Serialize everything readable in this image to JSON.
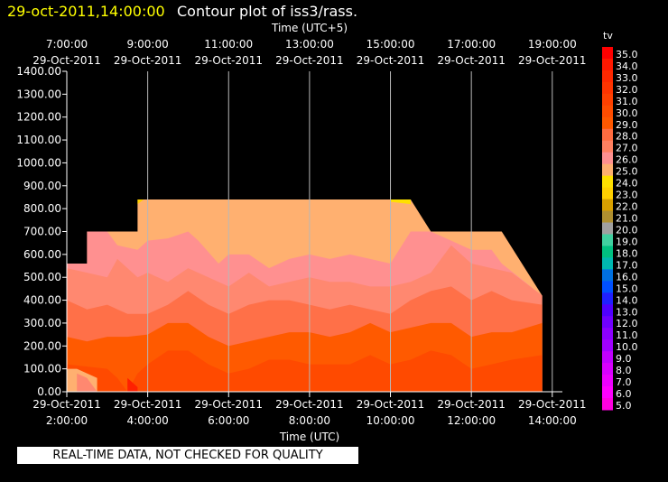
{
  "header": {
    "timestamp": "29-oct-2011,14:00:00",
    "title": "Contour plot of iss3/rass."
  },
  "quality_note": "REAL-TIME DATA, NOT CHECKED FOR QUALITY",
  "colors": {
    "background": "#000000",
    "timestamp": "#ffff00",
    "contour_levels": {
      "20": "#b0b0b0",
      "21": "#c8a030",
      "22": "#e0b000",
      "23": "#ffd000",
      "24": "#ffe000",
      "25": "#ffb070",
      "26": "#ff9090",
      "27": "#ff8870",
      "28": "#ff7048",
      "29": "#ff5a00",
      "30": "#ff4a00",
      "31": "#ff3800",
      "32": "#ff2000"
    }
  },
  "chart_data": {
    "type": "contour",
    "title": "Contour plot of iss3/rass.",
    "xlabel": "Time (UTC)",
    "x2label": "Time (UTC+5)",
    "ylabel": "",
    "xlim": [
      2.0,
      14.25
    ],
    "ylim": [
      0,
      1400
    ],
    "x_ticks": [
      {
        "hour": 2,
        "date": "29-Oct-2011",
        "time": "2:00:00"
      },
      {
        "hour": 4,
        "date": "29-Oct-2011",
        "time": "4:00:00"
      },
      {
        "hour": 6,
        "date": "29-Oct-2011",
        "time": "6:00:00"
      },
      {
        "hour": 8,
        "date": "29-Oct-2011",
        "time": "8:00:00"
      },
      {
        "hour": 10,
        "date": "29-Oct-2011",
        "time": "10:00:00"
      },
      {
        "hour": 12,
        "date": "29-Oct-2011",
        "time": "12:00:00"
      },
      {
        "hour": 14,
        "date": "29-Oct-2011",
        "time": "14:00:00"
      }
    ],
    "x2_ticks": [
      {
        "hour": 2,
        "date": "29-Oct-2011",
        "time": "7:00:00"
      },
      {
        "hour": 4,
        "date": "29-Oct-2011",
        "time": "9:00:00"
      },
      {
        "hour": 6,
        "date": "29-Oct-2011",
        "time": "11:00:00"
      },
      {
        "hour": 8,
        "date": "29-Oct-2011",
        "time": "13:00:00"
      },
      {
        "hour": 10,
        "date": "29-Oct-2011",
        "time": "15:00:00"
      },
      {
        "hour": 12,
        "date": "29-Oct-2011",
        "time": "17:00:00"
      },
      {
        "hour": 14,
        "date": "29-Oct-2011",
        "time": "19:00:00"
      }
    ],
    "y_ticks": [
      "0.00",
      "100.00",
      "200.00",
      "300.00",
      "400.00",
      "500.00",
      "600.00",
      "700.00",
      "800.00",
      "900.00",
      "1000.00",
      "1100.00",
      "1200.00",
      "1300.00",
      "1400.00"
    ],
    "grid": true,
    "colorbar": {
      "label": "tv",
      "levels": [
        "35.0",
        "34.0",
        "33.0",
        "32.0",
        "31.0",
        "30.0",
        "29.0",
        "28.0",
        "27.0",
        "26.0",
        "25.0",
        "24.0",
        "23.0",
        "22.0",
        "21.0",
        "20.0",
        "19.0",
        "18.0",
        "17.0",
        "16.0",
        "15.0",
        "14.0",
        "13.0",
        "12.0",
        "11.0",
        "10.0",
        "9.0",
        "8.0",
        "7.0",
        "6.0",
        "5.0"
      ],
      "colors": [
        "#ff0000",
        "#ff1800",
        "#ff2800",
        "#ff3400",
        "#ff4000",
        "#ff4c00",
        "#ff5800",
        "#ff6c40",
        "#ff8060",
        "#ff9090",
        "#ffb070",
        "#ffe000",
        "#ffd000",
        "#d8a000",
        "#b09030",
        "#a0a0a0",
        "#40d0a0",
        "#00c080",
        "#00b8b0",
        "#0070e0",
        "#0050ff",
        "#2020ff",
        "#5000ff",
        "#7000ff",
        "#8c00ff",
        "#a000ff",
        "#c000ff",
        "#d800ff",
        "#ec00ff",
        "#ff00ff",
        "#ff00e0"
      ]
    },
    "coverage_top_boundary": [
      {
        "x": 2.0,
        "y": 560
      },
      {
        "x": 2.5,
        "y": 560
      },
      {
        "x": 2.5,
        "y": 700
      },
      {
        "x": 3.75,
        "y": 700
      },
      {
        "x": 3.75,
        "y": 840
      },
      {
        "x": 10.5,
        "y": 840
      },
      {
        "x": 11.0,
        "y": 700
      },
      {
        "x": 12.75,
        "y": 700
      },
      {
        "x": 13.75,
        "y": 420
      },
      {
        "x": 13.75,
        "y": 0
      }
    ],
    "bands": [
      {
        "level": 25,
        "top": [
          [
            2.0,
            560
          ],
          [
            2.5,
            560
          ],
          [
            2.5,
            700
          ],
          [
            3.75,
            700
          ],
          [
            3.75,
            840
          ],
          [
            10.5,
            840
          ],
          [
            11.0,
            700
          ],
          [
            12.75,
            700
          ],
          [
            13.75,
            420
          ]
        ]
      },
      {
        "level": 26,
        "top": [
          [
            2.0,
            560
          ],
          [
            2.5,
            560
          ],
          [
            2.5,
            700
          ],
          [
            3.0,
            700
          ],
          [
            3.25,
            640
          ],
          [
            3.75,
            620
          ],
          [
            4.0,
            660
          ],
          [
            4.5,
            670
          ],
          [
            5.0,
            700
          ],
          [
            5.25,
            660
          ],
          [
            5.75,
            560
          ],
          [
            6.0,
            600
          ],
          [
            6.5,
            600
          ],
          [
            7.0,
            540
          ],
          [
            7.5,
            580
          ],
          [
            8.0,
            600
          ],
          [
            8.5,
            580
          ],
          [
            9.0,
            600
          ],
          [
            9.5,
            580
          ],
          [
            10.0,
            560
          ],
          [
            10.5,
            700
          ],
          [
            11.0,
            700
          ],
          [
            11.5,
            660
          ],
          [
            12.0,
            620
          ],
          [
            12.5,
            620
          ],
          [
            12.75,
            560
          ],
          [
            13.75,
            420
          ]
        ]
      },
      {
        "level": 27,
        "top": [
          [
            2.0,
            540
          ],
          [
            2.5,
            520
          ],
          [
            3.0,
            500
          ],
          [
            3.25,
            580
          ],
          [
            3.75,
            500
          ],
          [
            4.0,
            520
          ],
          [
            4.5,
            480
          ],
          [
            5.0,
            540
          ],
          [
            5.5,
            500
          ],
          [
            6.0,
            460
          ],
          [
            6.5,
            520
          ],
          [
            7.0,
            460
          ],
          [
            7.5,
            480
          ],
          [
            8.0,
            500
          ],
          [
            8.5,
            480
          ],
          [
            9.0,
            480
          ],
          [
            9.5,
            460
          ],
          [
            10.0,
            460
          ],
          [
            10.5,
            480
          ],
          [
            11.0,
            520
          ],
          [
            11.5,
            640
          ],
          [
            12.0,
            560
          ],
          [
            12.5,
            540
          ],
          [
            13.0,
            520
          ],
          [
            13.75,
            420
          ]
        ]
      },
      {
        "level": 28,
        "top": [
          [
            2.0,
            400
          ],
          [
            2.5,
            360
          ],
          [
            3.0,
            380
          ],
          [
            3.5,
            340
          ],
          [
            4.0,
            340
          ],
          [
            4.5,
            380
          ],
          [
            5.0,
            440
          ],
          [
            5.5,
            380
          ],
          [
            6.0,
            340
          ],
          [
            6.5,
            380
          ],
          [
            7.0,
            400
          ],
          [
            7.5,
            400
          ],
          [
            8.0,
            380
          ],
          [
            8.5,
            360
          ],
          [
            9.0,
            380
          ],
          [
            9.5,
            360
          ],
          [
            10.0,
            340
          ],
          [
            10.5,
            400
          ],
          [
            11.0,
            440
          ],
          [
            11.5,
            460
          ],
          [
            12.0,
            400
          ],
          [
            12.5,
            440
          ],
          [
            13.0,
            400
          ],
          [
            13.75,
            380
          ]
        ]
      },
      {
        "level": 29,
        "top": [
          [
            2.0,
            240
          ],
          [
            2.5,
            220
          ],
          [
            3.0,
            240
          ],
          [
            3.5,
            240
          ],
          [
            4.0,
            250
          ],
          [
            4.5,
            300
          ],
          [
            5.0,
            300
          ],
          [
            5.5,
            240
          ],
          [
            6.0,
            200
          ],
          [
            6.5,
            220
          ],
          [
            7.0,
            240
          ],
          [
            7.5,
            260
          ],
          [
            8.0,
            260
          ],
          [
            8.5,
            240
          ],
          [
            9.0,
            260
          ],
          [
            9.5,
            300
          ],
          [
            10.0,
            260
          ],
          [
            10.5,
            280
          ],
          [
            11.0,
            300
          ],
          [
            11.5,
            300
          ],
          [
            12.0,
            240
          ],
          [
            12.5,
            260
          ],
          [
            13.0,
            260
          ],
          [
            13.75,
            300
          ]
        ]
      },
      {
        "level": 30,
        "top": [
          [
            2.0,
            120
          ],
          [
            2.5,
            110
          ],
          [
            3.0,
            100
          ],
          [
            3.25,
            60
          ],
          [
            3.5,
            0
          ],
          [
            3.75,
            80
          ],
          [
            4.0,
            120
          ],
          [
            4.5,
            180
          ],
          [
            5.0,
            180
          ],
          [
            5.5,
            120
          ],
          [
            6.0,
            80
          ],
          [
            6.5,
            100
          ],
          [
            7.0,
            140
          ],
          [
            7.5,
            140
          ],
          [
            8.0,
            120
          ],
          [
            8.5,
            120
          ],
          [
            9.0,
            120
          ],
          [
            9.5,
            160
          ],
          [
            10.0,
            120
          ],
          [
            10.5,
            140
          ],
          [
            11.0,
            180
          ],
          [
            11.5,
            160
          ],
          [
            12.0,
            100
          ],
          [
            12.5,
            120
          ],
          [
            13.0,
            140
          ],
          [
            13.75,
            160
          ]
        ]
      },
      {
        "level": 25,
        "top": [
          [
            2.0,
            100
          ],
          [
            2.25,
            100
          ],
          [
            2.75,
            60
          ],
          [
            2.75,
            0
          ],
          [
            2.0,
            0
          ]
        ]
      },
      {
        "level": 27,
        "top": [
          [
            2.25,
            80
          ],
          [
            2.5,
            60
          ],
          [
            2.75,
            0
          ],
          [
            2.25,
            0
          ]
        ]
      },
      {
        "level": 32,
        "top": [
          [
            3.5,
            60
          ],
          [
            3.75,
            20
          ],
          [
            3.75,
            0
          ],
          [
            3.5,
            0
          ]
        ]
      },
      {
        "level": 24,
        "top": [
          [
            10.0,
            840
          ],
          [
            10.5,
            840
          ],
          [
            10.5,
            820
          ],
          [
            10.0,
            830
          ]
        ]
      },
      {
        "level": 23,
        "top": [
          [
            3.75,
            840
          ],
          [
            3.9,
            840
          ],
          [
            3.75,
            820
          ]
        ]
      }
    ]
  }
}
